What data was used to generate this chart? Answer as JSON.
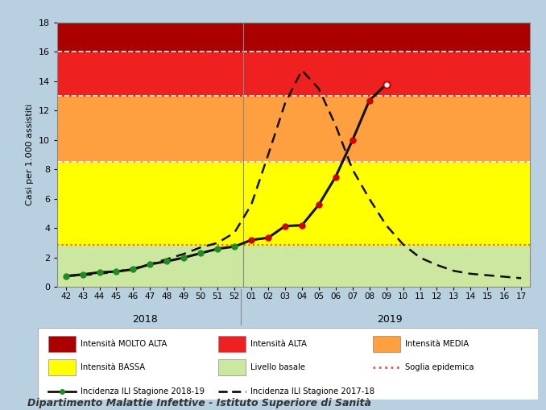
{
  "background_color": "#b8d0e0",
  "plot_bg": "#ffffff",
  "title_bottom": "Dipartimento Malattie Infettive - Istituto Superiore di Sanità",
  "ylabel": "Casi per 1.000 assistiti",
  "ylim": [
    0,
    18
  ],
  "yticks": [
    0,
    2,
    4,
    6,
    8,
    10,
    12,
    14,
    16,
    18
  ],
  "x_labels": [
    "42",
    "43",
    "44",
    "45",
    "46",
    "47",
    "48",
    "49",
    "50",
    "51",
    "52",
    "01",
    "02",
    "03",
    "04",
    "05",
    "06",
    "07",
    "08",
    "09",
    "10",
    "11",
    "12",
    "13",
    "14",
    "15",
    "16",
    "17"
  ],
  "zones": [
    {
      "ymin": 0,
      "ymax": 2.85,
      "color": "#cce8a0",
      "label": "Livello basale"
    },
    {
      "ymin": 2.85,
      "ymax": 8.5,
      "color": "#ffff00",
      "label": "Intensità BASSA"
    },
    {
      "ymin": 8.5,
      "ymax": 13.0,
      "color": "#ffa040",
      "label": "Intensità MEDIA"
    },
    {
      "ymin": 13.0,
      "ymax": 16.0,
      "color": "#ee2020",
      "label": "Intensità ALTA"
    },
    {
      "ymin": 16.0,
      "ymax": 18.0,
      "color": "#aa0000",
      "label": "Intensità MOLTO ALTA"
    }
  ],
  "epidemic_threshold": 2.85,
  "epidemic_threshold_color": "#ee5555",
  "white_lines": [
    8.5,
    13.0,
    16.0
  ],
  "season_2018_19_x": [
    0,
    1,
    2,
    3,
    4,
    5,
    6,
    7,
    8,
    9,
    10,
    11,
    12,
    13,
    14,
    15,
    16,
    17,
    18,
    19
  ],
  "season_2018_19_y": [
    0.75,
    0.85,
    1.0,
    1.05,
    1.2,
    1.55,
    1.75,
    2.0,
    2.3,
    2.6,
    2.75,
    3.2,
    3.35,
    4.15,
    4.2,
    5.6,
    7.5,
    10.0,
    12.7,
    13.8
  ],
  "season_2017_18_x": [
    0,
    1,
    2,
    3,
    4,
    5,
    6,
    7,
    8,
    9,
    10,
    11,
    12,
    13,
    14,
    15,
    16,
    17,
    18,
    19,
    20,
    21,
    22,
    23,
    24,
    25,
    26,
    27
  ],
  "season_2017_18_y": [
    0.75,
    0.8,
    0.9,
    1.05,
    1.25,
    1.55,
    1.9,
    2.25,
    2.7,
    3.0,
    3.7,
    5.6,
    9.0,
    12.5,
    14.75,
    13.5,
    11.0,
    8.0,
    6.0,
    4.2,
    2.9,
    2.0,
    1.5,
    1.1,
    0.9,
    0.8,
    0.7,
    0.6
  ],
  "epidemic_threshold_val": 2.85,
  "green_dot_color": "#228B22",
  "red_dot_color": "#cc0000",
  "line_2018_19_color": "#111111",
  "line_2017_18_color": "#111111",
  "open_dot_last": true,
  "legend_items_row1": [
    {
      "color": "#aa0000",
      "style": "patch",
      "label": "Intensità MOLTO ALTA"
    },
    {
      "color": "#ee2020",
      "style": "patch",
      "label": "Intensità ALTA"
    },
    {
      "color": "#ffa040",
      "style": "patch",
      "label": "Intensità MEDIA"
    }
  ],
  "legend_items_row2": [
    {
      "color": "#ffff00",
      "style": "patch",
      "label": "Intensità BASSA"
    },
    {
      "color": "#cce8a0",
      "style": "patch",
      "label": "Livello basale"
    },
    {
      "color": "#ee5555",
      "style": "dotted",
      "label": "Soglia epidemica"
    }
  ],
  "legend_items_row3": [
    {
      "color": "#111111",
      "style": "solid_dot",
      "label": "Incidenza ILI Stagione 2018-19"
    },
    {
      "color": "#111111",
      "style": "dashed",
      "label": "Incidenza ILI Stagione 2017-18"
    }
  ]
}
